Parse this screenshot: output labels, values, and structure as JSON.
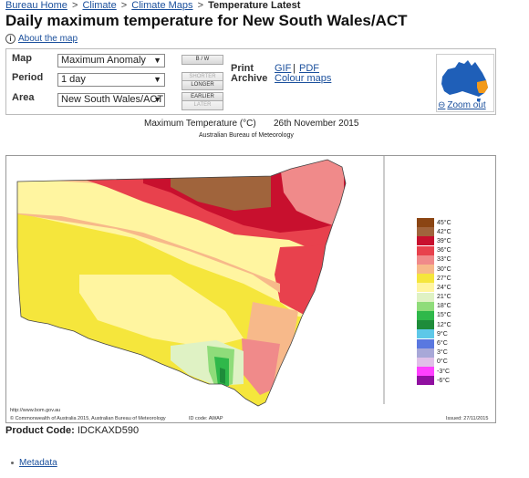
{
  "breadcrumb": {
    "items": [
      "Bureau Home",
      "Climate",
      "Climate Maps"
    ],
    "separator": ">",
    "current": "Temperature Latest"
  },
  "page_title": "Daily maximum temperature for New South Wales/ACT",
  "about_link": "About the map",
  "controls": {
    "map_label": "Map",
    "map_value": "Maximum Anomaly",
    "period_label": "Period",
    "period_value": "1 day",
    "area_label": "Area",
    "area_value": "New South Wales/ACT",
    "bw_button": "B / W",
    "shorter_button": "SHORTER",
    "longer_button": "LONGER",
    "earlier_button": "EARLIER",
    "later_button": "LATER",
    "print_label": "Print",
    "archive_label": "Archive",
    "gif_link": "GIF",
    "pdf_sep": "|",
    "pdf_link": "PDF",
    "colour_maps_link": "Colour maps",
    "zoom_out": "Zoom out"
  },
  "map": {
    "title": "Maximum Temperature (°C)",
    "date": "26th November 2015",
    "subtitle": "Australian Bureau of Meteorology",
    "website": "http://www.bom.gov.au",
    "copyright": "© Commonwealth of Australia 2015, Australian Bureau of Meteorology",
    "id_code": "ID code: AWAP",
    "issued": "Issued: 27/11/2015"
  },
  "legend": [
    {
      "label": "45°C",
      "color": "#8b4513"
    },
    {
      "label": "42°C",
      "color": "#a0643c"
    },
    {
      "label": "39°C",
      "color": "#c8102e"
    },
    {
      "label": "36°C",
      "color": "#e8414d"
    },
    {
      "label": "33°C",
      "color": "#f08a8a"
    },
    {
      "label": "30°C",
      "color": "#f7b98a"
    },
    {
      "label": "27°C",
      "color": "#f5e63c"
    },
    {
      "label": "24°C",
      "color": "#fff5a0"
    },
    {
      "label": "21°C",
      "color": "#dff2c4"
    },
    {
      "label": "18°C",
      "color": "#8fdc7a"
    },
    {
      "label": "15°C",
      "color": "#2fb84a"
    },
    {
      "label": "12°C",
      "color": "#1e8c3a"
    },
    {
      "label": "9°C",
      "color": "#5ec8e8"
    },
    {
      "label": "6°C",
      "color": "#5a78e0"
    },
    {
      "label": "3°C",
      "color": "#a8a8d8"
    },
    {
      "label": "0°C",
      "color": "#e0c0e8"
    },
    {
      "label": "-3°C",
      "color": "#ff40ff"
    },
    {
      "label": "-6°C",
      "color": "#9010a0"
    }
  ],
  "product_code_label": "Product Code:",
  "product_code": "IDCKAXD590",
  "metadata_link": "Metadata"
}
